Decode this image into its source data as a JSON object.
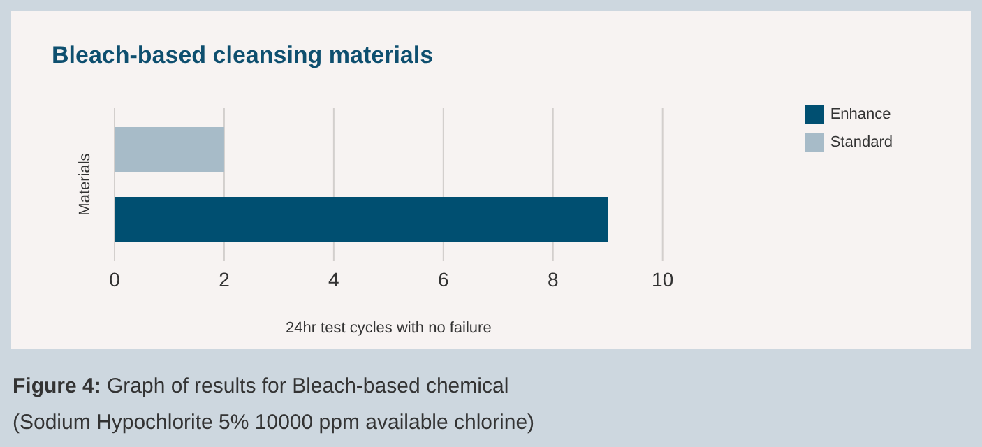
{
  "chart_data": {
    "type": "bar",
    "orientation": "horizontal",
    "title": "Bleach-based cleansing materials",
    "xlabel": "24hr test cycles with no failure",
    "ylabel": "Materials",
    "categories": [
      null
    ],
    "series": [
      {
        "name": "Standard",
        "color": "#a7bbc8",
        "values": [
          2
        ]
      },
      {
        "name": "Enhance",
        "color": "#004f71",
        "values": [
          9
        ]
      }
    ],
    "xlim": [
      0,
      10
    ],
    "xticks": [
      0,
      2,
      4,
      6,
      8,
      10
    ],
    "grid": "x",
    "legend": "top right",
    "annotations": [
      "Figure 4: Graph of results for Bleach-based chemical",
      "(Sodium Hypochlorite 5% 10000 ppm available chlorine)"
    ]
  }
}
